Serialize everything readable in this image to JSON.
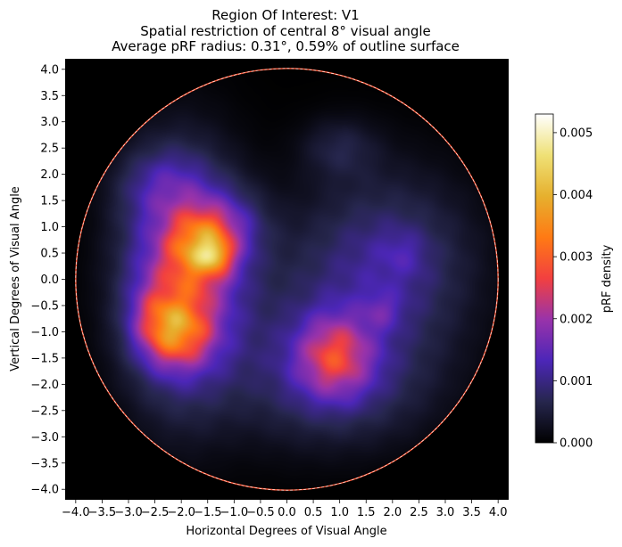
{
  "chart_data": {
    "type": "heatmap",
    "title": [
      "Region Of Interest: V1",
      "Spatial restriction of central 8° visual angle",
      "Average pRF radius: 0.31°, 0.59% of outline surface"
    ],
    "xlabel": "Horizontal Degrees of Visual Angle",
    "ylabel": "Vertical Degrees of Visual Angle",
    "xlim": [
      -4.2,
      4.2
    ],
    "ylim": [
      -4.2,
      4.2
    ],
    "xticks": [
      -4.0,
      -3.5,
      -3.0,
      -2.5,
      -2.0,
      -1.5,
      -1.0,
      -0.5,
      0.0,
      0.5,
      1.0,
      1.5,
      2.0,
      2.5,
      3.0,
      3.5,
      4.0
    ],
    "xtick_labels": [
      "−4.0",
      "−3.5",
      "−3.0",
      "−2.5",
      "−2.0",
      "−1.5",
      "−1.0",
      "−0.5",
      "0.0",
      "0.5",
      "1.0",
      "1.5",
      "2.0",
      "2.5",
      "3.0",
      "3.5",
      "4.0"
    ],
    "yticks": [
      4.0,
      3.5,
      3.0,
      2.5,
      2.0,
      1.5,
      1.0,
      0.5,
      0.0,
      -0.5,
      -1.0,
      -1.5,
      -2.0,
      -2.5,
      -3.0,
      -3.5,
      -4.0
    ],
    "ytick_labels": [
      "4.0",
      "3.5",
      "3.0",
      "2.5",
      "2.0",
      "1.5",
      "1.0",
      "0.5",
      "0.0",
      "−0.5",
      "−1.0",
      "−1.5",
      "−2.0",
      "−2.5",
      "−3.0",
      "−3.5",
      "−4.0"
    ],
    "outline_circle_radius": 4.0,
    "colorbar": {
      "label": "pRF density",
      "range": [
        0.0,
        0.0053
      ],
      "ticks": [
        0.0,
        0.001,
        0.002,
        0.003,
        0.004,
        0.005
      ],
      "tick_labels": [
        "0.000",
        "0.001",
        "0.002",
        "0.003",
        "0.004",
        "0.005"
      ],
      "colormap": "CMRmap-like"
    },
    "density_blobs": [
      {
        "x": -2.0,
        "y": 0.0,
        "sx": 0.75,
        "sy": 1.5,
        "peak": 0.0022
      },
      {
        "x": -2.1,
        "y": -1.0,
        "sx": 0.45,
        "sy": 0.45,
        "peak": 0.0018
      },
      {
        "x": -1.6,
        "y": 0.6,
        "sx": 0.4,
        "sy": 0.45,
        "peak": 0.0019
      },
      {
        "x": -1.35,
        "y": 0.45,
        "sx": 0.18,
        "sy": 0.18,
        "peak": 0.0012
      },
      {
        "x": -2.5,
        "y": -0.7,
        "sx": 0.35,
        "sy": 0.5,
        "peak": 0.0006
      },
      {
        "x": -1.1,
        "y": 1.0,
        "sx": 0.5,
        "sy": 0.5,
        "peak": 0.0008
      },
      {
        "x": 0.9,
        "y": -1.45,
        "sx": 0.5,
        "sy": 0.55,
        "peak": 0.0017
      },
      {
        "x": 1.9,
        "y": 0.2,
        "sx": 1.1,
        "sy": 1.2,
        "peak": 0.0011
      },
      {
        "x": 1.8,
        "y": -0.6,
        "sx": 0.25,
        "sy": 0.25,
        "peak": 0.0005
      },
      {
        "x": 2.2,
        "y": 0.5,
        "sx": 0.3,
        "sy": 0.3,
        "peak": 0.0003
      },
      {
        "x": 1.0,
        "y": -2.0,
        "sx": 1.2,
        "sy": 0.8,
        "peak": 0.0008
      },
      {
        "x": 1.0,
        "y": 2.5,
        "sx": 0.5,
        "sy": 0.4,
        "peak": 0.0005
      },
      {
        "x": -2.4,
        "y": 1.8,
        "sx": 0.6,
        "sy": 0.5,
        "peak": 0.0006
      },
      {
        "x": -0.3,
        "y": -0.8,
        "sx": 1.1,
        "sy": 1.3,
        "peak": 0.0004
      }
    ]
  }
}
